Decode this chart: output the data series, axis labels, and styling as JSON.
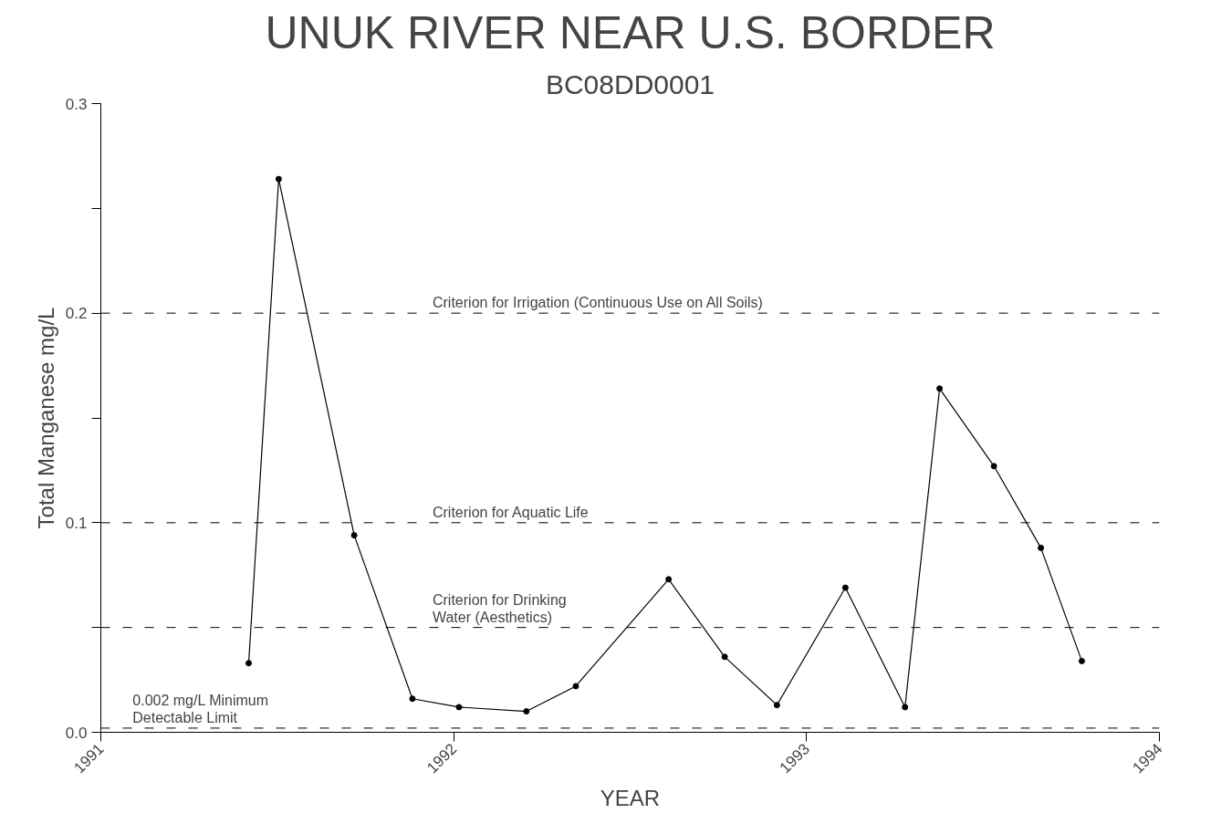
{
  "chart_data": {
    "type": "line",
    "title": "UNUK RIVER NEAR U.S. BORDER",
    "subtitle": "BC08DD0001",
    "xlabel": "YEAR",
    "ylabel": "Total Manganese mg/L",
    "x": [
      1991.419,
      1991.504,
      1991.718,
      1991.883,
      1992.015,
      1992.206,
      1992.346,
      1992.609,
      1992.768,
      1992.916,
      1993.11,
      1993.279,
      1993.377,
      1993.531,
      1993.664,
      1993.78
    ],
    "series": [
      {
        "color": "#000000",
        "values": [
          0.033,
          0.264,
          0.094,
          0.016,
          0.012,
          0.01,
          0.022,
          0.073,
          0.036,
          0.013,
          0.069,
          0.012,
          0.164,
          0.127,
          0.088,
          0.034
        ]
      }
    ],
    "xlim": [
      1991,
      1994
    ],
    "xticks": [
      1991,
      1992,
      1993,
      1994
    ],
    "ylim": [
      0,
      0.3
    ],
    "yticks": [
      {
        "value": 0,
        "label": "0.0"
      },
      {
        "value": 0.05,
        "label": null
      },
      {
        "value": 0.1,
        "label": "0.1"
      },
      {
        "value": 0.15,
        "label": null
      },
      {
        "value": 0.2,
        "label": "0.2"
      },
      {
        "value": 0.25,
        "label": null
      },
      {
        "value": 0.3,
        "label": "0.3"
      }
    ],
    "ref_lines": [
      {
        "axis": "y",
        "value": 0.2,
        "label": "Criterion for Irrigation (Continuous Use on All Soils)",
        "line_style": "dashed"
      },
      {
        "axis": "y",
        "value": 0.1,
        "label": "Criterion for Aquatic Life",
        "line_style": "dashed"
      },
      {
        "axis": "y",
        "value": 0.05,
        "label": "Criterion for Drinking\nWater (Aesthetics)",
        "line_style": "dashed"
      },
      {
        "axis": "y",
        "value": 0.002,
        "label": "0.002 mg/L Minimum\nDetectable Limit",
        "line_style": "dashed"
      }
    ],
    "grid": false,
    "marker": "circle",
    "line_style": "solid"
  }
}
